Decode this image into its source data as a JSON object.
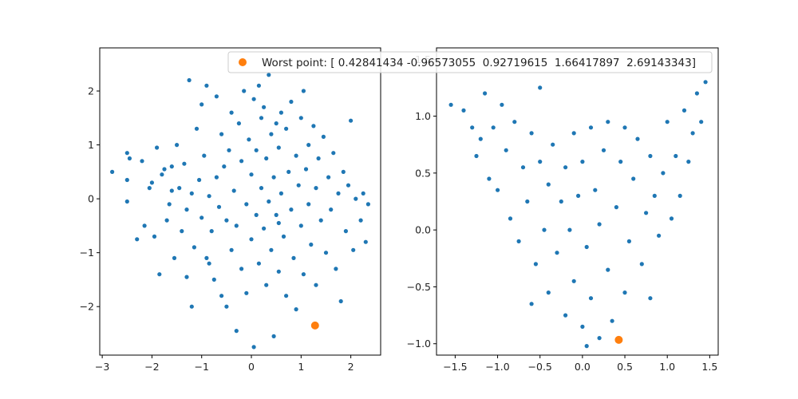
{
  "chart_data": [
    {
      "type": "scatter",
      "xlim": [
        -3.05,
        2.6
      ],
      "ylim": [
        -2.9,
        2.8
      ],
      "xticks": [
        -3,
        -2,
        -1,
        0,
        1,
        2
      ],
      "yticks": [
        -2,
        -1,
        0,
        1,
        2
      ],
      "grid": false,
      "series": [
        {
          "color": "#1f77b4",
          "points": [
            [
              -2.8,
              0.5
            ],
            [
              -2.5,
              0.85
            ],
            [
              -2.45,
              0.75
            ],
            [
              -2.5,
              0.35
            ],
            [
              -2.5,
              -0.05
            ],
            [
              -2.3,
              -0.75
            ],
            [
              -2.2,
              0.7
            ],
            [
              -2.15,
              -0.5
            ],
            [
              -2.05,
              0.2
            ],
            [
              -2.0,
              0.3
            ],
            [
              -1.95,
              -0.7
            ],
            [
              -1.9,
              0.95
            ],
            [
              -1.85,
              -1.4
            ],
            [
              -1.8,
              0.45
            ],
            [
              -1.75,
              0.55
            ],
            [
              -1.7,
              -0.4
            ],
            [
              -1.65,
              -0.1
            ],
            [
              -1.6,
              0.6
            ],
            [
              -1.55,
              -1.1
            ],
            [
              -1.5,
              1.0
            ],
            [
              -1.45,
              0.2
            ],
            [
              -1.4,
              -0.6
            ],
            [
              -1.35,
              0.65
            ],
            [
              -1.3,
              -0.2
            ],
            [
              -1.3,
              -1.45
            ],
            [
              -1.25,
              2.2
            ],
            [
              -1.2,
              -2.0
            ],
            [
              -1.2,
              0.1
            ],
            [
              -1.15,
              -0.9
            ],
            [
              -1.1,
              1.3
            ],
            [
              -1.05,
              0.35
            ],
            [
              -1.0,
              -0.35
            ],
            [
              -1.0,
              1.75
            ],
            [
              -0.95,
              0.8
            ],
            [
              -0.9,
              -1.1
            ],
            [
              -0.9,
              2.1
            ],
            [
              -0.85,
              0.05
            ],
            [
              -0.8,
              -0.6
            ],
            [
              -0.75,
              -1.5
            ],
            [
              -0.7,
              1.9
            ],
            [
              -0.7,
              0.4
            ],
            [
              -0.65,
              -0.15
            ],
            [
              -0.6,
              -1.8
            ],
            [
              -0.6,
              1.2
            ],
            [
              -0.55,
              0.6
            ],
            [
              -0.5,
              -0.4
            ],
            [
              -0.5,
              -2.0
            ],
            [
              -0.45,
              0.9
            ],
            [
              -0.4,
              -0.95
            ],
            [
              -0.4,
              1.6
            ],
            [
              -0.35,
              0.15
            ],
            [
              -0.3,
              -2.45
            ],
            [
              -0.3,
              -0.5
            ],
            [
              -0.25,
              1.4
            ],
            [
              -0.2,
              0.7
            ],
            [
              -0.2,
              -1.3
            ],
            [
              -0.15,
              2.0
            ],
            [
              -0.1,
              -0.1
            ],
            [
              -0.1,
              -1.75
            ],
            [
              -0.05,
              1.1
            ],
            [
              0.0,
              0.45
            ],
            [
              0.0,
              -0.75
            ],
            [
              0.05,
              1.85
            ],
            [
              0.05,
              -2.75
            ],
            [
              0.1,
              -0.3
            ],
            [
              0.1,
              0.9
            ],
            [
              0.15,
              2.1
            ],
            [
              0.15,
              -1.2
            ],
            [
              0.2,
              0.2
            ],
            [
              0.2,
              1.5
            ],
            [
              0.25,
              -0.55
            ],
            [
              0.25,
              1.7
            ],
            [
              0.3,
              -1.6
            ],
            [
              0.3,
              0.75
            ],
            [
              0.35,
              -0.05
            ],
            [
              0.35,
              2.3
            ],
            [
              0.4,
              1.2
            ],
            [
              0.4,
              -0.95
            ],
            [
              0.45,
              0.4
            ],
            [
              0.45,
              -2.55
            ],
            [
              0.5,
              1.4
            ],
            [
              0.5,
              -0.3
            ],
            [
              0.55,
              0.95
            ],
            [
              0.55,
              -1.35
            ],
            [
              0.6,
              1.6
            ],
            [
              0.6,
              0.1
            ],
            [
              0.65,
              -0.7
            ],
            [
              0.7,
              1.3
            ],
            [
              0.7,
              -1.8
            ],
            [
              0.75,
              0.5
            ],
            [
              0.8,
              -0.2
            ],
            [
              0.8,
              1.8
            ],
            [
              0.85,
              -1.1
            ],
            [
              0.9,
              0.8
            ],
            [
              0.9,
              -2.05
            ],
            [
              0.95,
              0.25
            ],
            [
              1.0,
              -0.5
            ],
            [
              1.0,
              1.5
            ],
            [
              1.05,
              -1.4
            ],
            [
              1.05,
              2.0
            ],
            [
              1.1,
              0.55
            ],
            [
              1.15,
              -0.1
            ],
            [
              1.15,
              1.0
            ],
            [
              1.2,
              -0.85
            ],
            [
              1.25,
              1.35
            ],
            [
              1.3,
              0.2
            ],
            [
              1.3,
              -1.6
            ],
            [
              1.35,
              0.75
            ],
            [
              1.4,
              -0.4
            ],
            [
              1.45,
              1.15
            ],
            [
              1.5,
              -1.0
            ],
            [
              1.55,
              0.4
            ],
            [
              1.6,
              -0.2
            ],
            [
              1.65,
              0.85
            ],
            [
              1.7,
              -1.3
            ],
            [
              1.75,
              0.1
            ],
            [
              1.8,
              -1.9
            ],
            [
              1.85,
              0.5
            ],
            [
              1.9,
              -0.6
            ],
            [
              1.95,
              0.25
            ],
            [
              2.0,
              1.45
            ],
            [
              2.05,
              -0.95
            ],
            [
              2.1,
              0.0
            ],
            [
              2.2,
              -0.4
            ],
            [
              2.25,
              0.1
            ],
            [
              2.3,
              -0.8
            ],
            [
              2.35,
              -0.1
            ],
            [
              -1.6,
              0.15
            ],
            [
              -0.85,
              -1.2
            ],
            [
              0.55,
              -0.45
            ]
          ]
        },
        {
          "name": "Worst point",
          "color": "#ff7f0e",
          "points": [
            [
              1.28,
              -2.35
            ]
          ]
        }
      ]
    },
    {
      "type": "scatter",
      "xlim": [
        -1.72,
        1.6
      ],
      "ylim": [
        -1.1,
        1.6
      ],
      "xticks": [
        -1.5,
        -1.0,
        -0.5,
        0.0,
        0.5,
        1.0,
        1.5
      ],
      "yticks": [
        -1.0,
        -0.5,
        0.0,
        0.5,
        1.0,
        1.5
      ],
      "grid": false,
      "series": [
        {
          "color": "#1f77b4",
          "points": [
            [
              -1.55,
              1.1
            ],
            [
              -1.4,
              1.05
            ],
            [
              -1.3,
              0.9
            ],
            [
              -1.25,
              0.65
            ],
            [
              -1.2,
              0.8
            ],
            [
              -1.15,
              1.2
            ],
            [
              -1.1,
              0.45
            ],
            [
              -1.05,
              0.9
            ],
            [
              -1.0,
              0.35
            ],
            [
              -0.95,
              1.1
            ],
            [
              -0.9,
              0.7
            ],
            [
              -0.85,
              0.1
            ],
            [
              -0.8,
              0.95
            ],
            [
              -0.75,
              -0.1
            ],
            [
              -0.7,
              0.55
            ],
            [
              -0.65,
              0.25
            ],
            [
              -0.6,
              0.85
            ],
            [
              -0.55,
              -0.3
            ],
            [
              -0.5,
              0.6
            ],
            [
              -0.5,
              1.25
            ],
            [
              -0.45,
              0.0
            ],
            [
              -0.4,
              -0.55
            ],
            [
              -0.4,
              0.4
            ],
            [
              -0.35,
              0.75
            ],
            [
              -0.3,
              -0.2
            ],
            [
              -0.25,
              0.25
            ],
            [
              -0.2,
              -0.75
            ],
            [
              -0.2,
              0.55
            ],
            [
              -0.15,
              0.0
            ],
            [
              -0.1,
              0.85
            ],
            [
              -0.1,
              -0.45
            ],
            [
              -0.05,
              0.3
            ],
            [
              0.0,
              -0.85
            ],
            [
              0.0,
              0.6
            ],
            [
              0.05,
              -0.15
            ],
            [
              0.1,
              0.9
            ],
            [
              0.1,
              -0.6
            ],
            [
              0.15,
              0.35
            ],
            [
              0.2,
              -0.95
            ],
            [
              0.2,
              0.05
            ],
            [
              0.25,
              0.7
            ],
            [
              0.3,
              -0.35
            ],
            [
              0.3,
              0.95
            ],
            [
              0.35,
              -0.8
            ],
            [
              0.4,
              0.2
            ],
            [
              0.45,
              0.6
            ],
            [
              0.5,
              -0.55
            ],
            [
              0.5,
              0.9
            ],
            [
              0.55,
              -0.1
            ],
            [
              0.6,
              0.45
            ],
            [
              0.65,
              0.8
            ],
            [
              0.7,
              -0.3
            ],
            [
              0.75,
              0.15
            ],
            [
              0.8,
              -0.6
            ],
            [
              0.8,
              0.65
            ],
            [
              0.85,
              0.3
            ],
            [
              0.9,
              -0.05
            ],
            [
              0.95,
              0.5
            ],
            [
              1.0,
              0.95
            ],
            [
              1.05,
              0.1
            ],
            [
              1.1,
              0.65
            ],
            [
              1.15,
              0.3
            ],
            [
              1.2,
              1.05
            ],
            [
              1.25,
              0.6
            ],
            [
              1.3,
              0.85
            ],
            [
              1.35,
              1.2
            ],
            [
              1.4,
              0.95
            ],
            [
              1.45,
              1.3
            ],
            [
              -0.6,
              -0.65
            ],
            [
              0.05,
              -1.02
            ]
          ]
        },
        {
          "name": "Worst point",
          "color": "#ff7f0e",
          "points": [
            [
              0.428,
              -0.966
            ]
          ]
        }
      ]
    }
  ],
  "legend": {
    "label": "Worst point: [ 0.42841434 -0.96573055  0.92719615  1.66417897  2.69143343]",
    "marker_color": "#ff7f0e",
    "placement": "upper-right"
  }
}
